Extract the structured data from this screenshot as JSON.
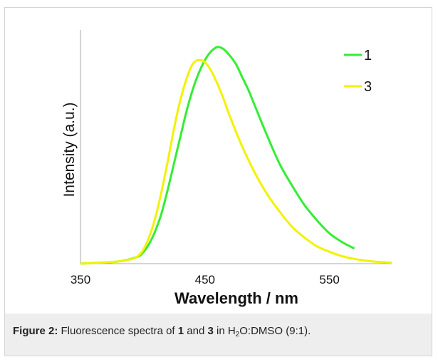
{
  "chart_data": {
    "type": "line",
    "title": "",
    "xlabel": "Wavelength / nm",
    "ylabel": "Intensity (a.u.)",
    "xlim": [
      350,
      600
    ],
    "ylim": [
      0,
      1.0
    ],
    "x_ticks": [
      "350",
      "450",
      "550"
    ],
    "y_ticks": [],
    "grid": false,
    "legend_position": "top-right",
    "series": [
      {
        "name": "1",
        "color": "#33ee33",
        "x": [
          350,
          380,
          395,
          400,
          405,
          410,
          415,
          420,
          425,
          430,
          435,
          440,
          445,
          450,
          455,
          460,
          465,
          470,
          475,
          480,
          485,
          490,
          500,
          510,
          520,
          530,
          540,
          550,
          560,
          570
        ],
        "y": [
          0.0,
          0.01,
          0.03,
          0.05,
          0.09,
          0.15,
          0.23,
          0.34,
          0.46,
          0.58,
          0.7,
          0.8,
          0.88,
          0.94,
          0.98,
          1.0,
          0.99,
          0.96,
          0.92,
          0.86,
          0.8,
          0.73,
          0.59,
          0.46,
          0.36,
          0.27,
          0.2,
          0.14,
          0.1,
          0.07
        ]
      },
      {
        "name": "3",
        "color": "#f2f200",
        "x": [
          350,
          380,
          390,
          395,
          400,
          405,
          410,
          415,
          420,
          425,
          430,
          435,
          440,
          445,
          450,
          455,
          460,
          465,
          470,
          480,
          490,
          500,
          510,
          520,
          530,
          540,
          550,
          560,
          570,
          580,
          590,
          600
        ],
        "y": [
          0.0,
          0.01,
          0.02,
          0.03,
          0.06,
          0.12,
          0.21,
          0.33,
          0.47,
          0.62,
          0.75,
          0.85,
          0.92,
          0.94,
          0.93,
          0.89,
          0.83,
          0.76,
          0.68,
          0.54,
          0.42,
          0.32,
          0.24,
          0.17,
          0.12,
          0.08,
          0.055,
          0.035,
          0.022,
          0.013,
          0.008,
          0.005
        ]
      }
    ]
  },
  "caption": {
    "figure_label": "Figure 2:",
    "text_1": " Fluorescence spectra of ",
    "compound_a": "1",
    "text_2": " and ",
    "compound_b": "3",
    "text_3": " in H",
    "subscript": "2",
    "text_4": "O:DMSO (9:1)."
  }
}
